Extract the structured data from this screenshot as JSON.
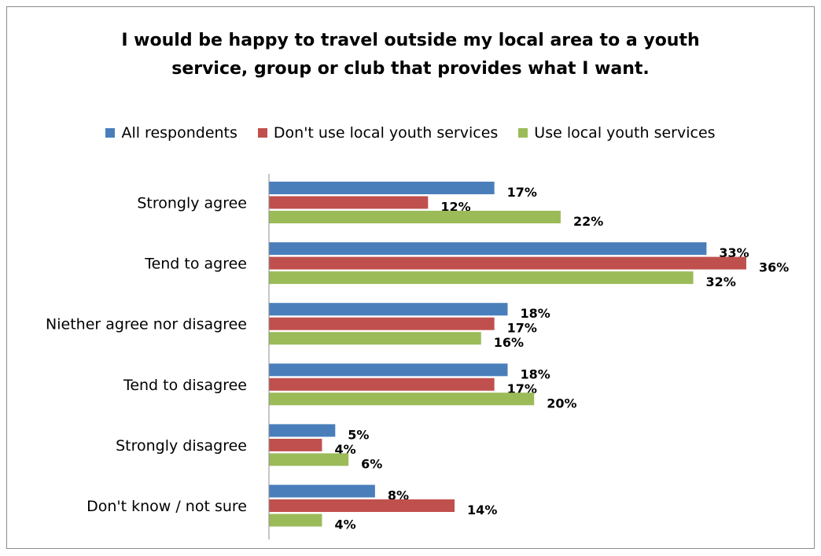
{
  "chart_data": {
    "type": "bar",
    "orientation": "horizontal",
    "title": "I would be happy to travel outside my local area to a youth service, group or club that provides what I want.",
    "title_lines": [
      "I would be happy to travel outside my local area to a youth",
      "service, group or club that provides what I want."
    ],
    "categories": [
      "Strongly agree",
      "Tend to agree",
      "Niether agree nor disagree",
      "Tend to disagree",
      "Strongly disagree",
      "Don't know / not sure"
    ],
    "series": [
      {
        "name": "All respondents",
        "color": "#4a7ebb",
        "values": [
          17,
          33,
          18,
          18,
          5,
          8
        ]
      },
      {
        "name": "Don't use local youth services",
        "color": "#c0504d",
        "values": [
          12,
          36,
          17,
          17,
          4,
          14
        ]
      },
      {
        "name": "Use local youth services",
        "color": "#9bbb59",
        "values": [
          22,
          32,
          16,
          20,
          6,
          4
        ]
      }
    ],
    "value_suffix": "%",
    "xlim": [
      0,
      36
    ],
    "grid": false,
    "legend_position": "top"
  }
}
